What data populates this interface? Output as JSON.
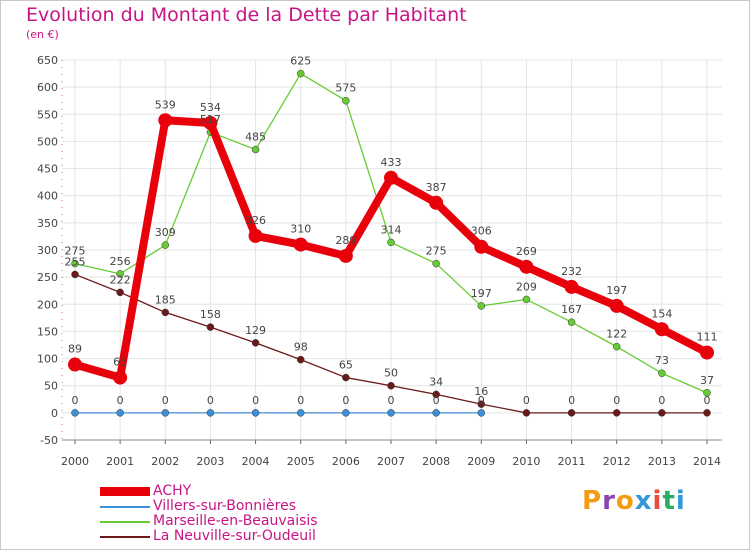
{
  "chart_data": {
    "type": "line",
    "title": "Evolution du Montant de la Dette par Habitant",
    "subtitle": "(en €)",
    "x": [
      "2000",
      "2001",
      "2002",
      "2003",
      "2004",
      "2005",
      "2006",
      "2007",
      "2008",
      "2009",
      "2010",
      "2011",
      "2012",
      "2013",
      "2014"
    ],
    "ylim": [
      -50,
      650
    ],
    "yticks": [
      "650",
      "600",
      "550",
      "500",
      "450",
      "400",
      "350",
      "300",
      "250",
      "200",
      "150",
      "100",
      "50",
      "0",
      "-50"
    ],
    "grid": true,
    "legend_position": "bottom-left",
    "series": [
      {
        "name": "ACHY",
        "color": "#e8000b",
        "values": [
          89,
          65,
          539,
          534,
          326,
          310,
          289,
          433,
          387,
          306,
          269,
          232,
          197,
          154,
          111
        ],
        "labels": [
          "89",
          "65",
          "539",
          "534",
          "326",
          "310",
          "289",
          "433",
          "387",
          "306",
          "269",
          "232",
          "197",
          "154",
          "111"
        ]
      },
      {
        "name": "Villers-sur-Bonnières",
        "color": "#3d8fd6",
        "values": [
          0,
          0,
          0,
          0,
          0,
          0,
          0,
          0,
          0,
          0,
          null,
          null,
          null,
          null,
          null
        ],
        "labels": [
          "0",
          "0",
          "0",
          "0",
          "0",
          "0",
          "0",
          "0",
          "0",
          "0",
          "",
          "",
          "",
          "",
          ""
        ]
      },
      {
        "name": "Marseille-en-Beauvaisis",
        "color": "#66cc33",
        "values": [
          275,
          256,
          309,
          517,
          485,
          625,
          575,
          314,
          275,
          197,
          209,
          167,
          122,
          73,
          37
        ],
        "labels": [
          "275",
          "256",
          "309",
          "517",
          "485",
          "625",
          "575",
          "314",
          "275",
          "197",
          "209",
          "167",
          "122",
          "73",
          "37"
        ]
      },
      {
        "name": "La Neuville-sur-Oudeuil",
        "color": "#6b1a1a",
        "values": [
          255,
          222,
          185,
          158,
          129,
          98,
          65,
          50,
          34,
          16,
          0,
          0,
          0,
          0,
          0
        ],
        "labels": [
          "255",
          "222",
          "185",
          "158",
          "129",
          "98",
          "65",
          "50",
          "34",
          "16",
          "0",
          "0",
          "0",
          "0",
          "0"
        ]
      }
    ]
  },
  "brand": {
    "text": "Proxiti",
    "letter_colors": [
      "#f39c12",
      "#8e44ad",
      "#f39c12",
      "#3498db",
      "#e74c3c",
      "#27ae60",
      "#3498db"
    ]
  }
}
